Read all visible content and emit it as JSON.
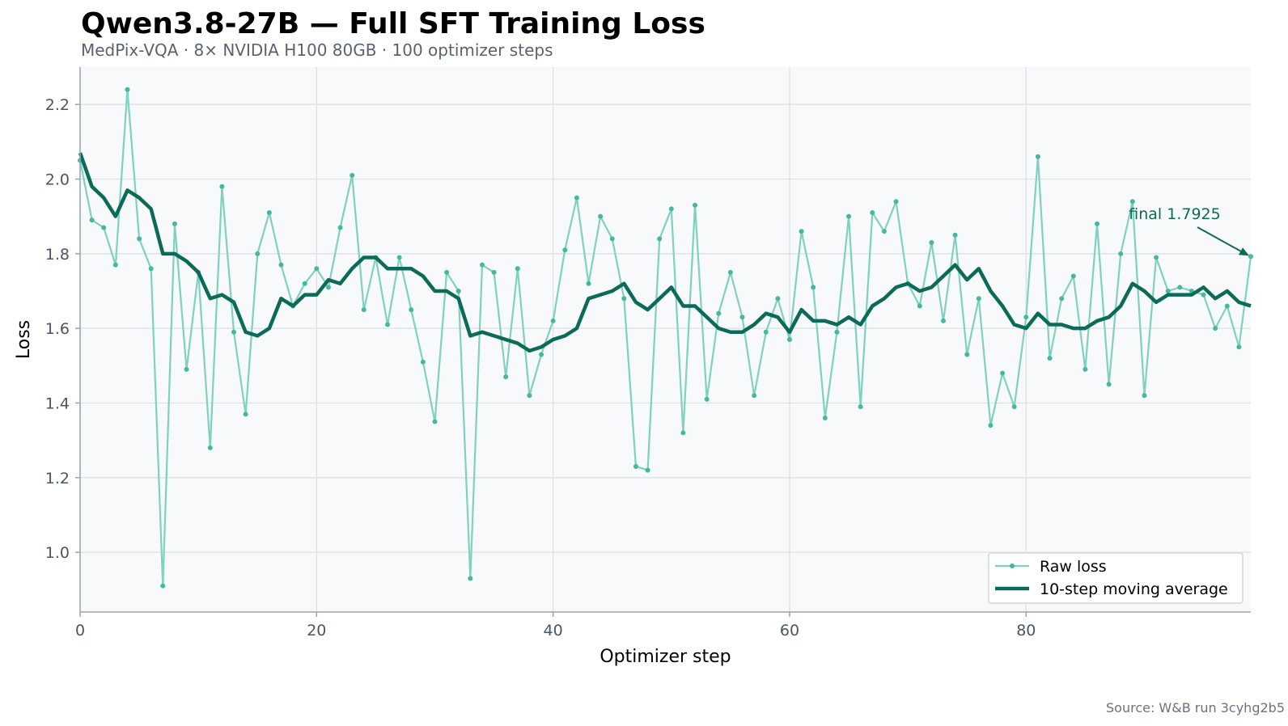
{
  "title": "Qwen3.8-27B — Full SFT Training Loss",
  "subtitle": "MedPix-VQA · 8× NVIDIA H100 80GB · 100 optimizer steps",
  "source": "Source: W&B run 3cyhg2b5",
  "colors": {
    "raw": "#7fd1c0",
    "raw_marker": "#45b89f",
    "moving_average": "#0b6b58",
    "plot_background": "#f8f9fa",
    "grid": "#dde1e5",
    "axis": "#9aa3ad"
  },
  "chart_data": {
    "type": "line",
    "title": "Qwen3.8-27B — Full SFT Training Loss",
    "subtitle": "MedPix-VQA · 8× NVIDIA H100 80GB · 100 optimizer steps",
    "xlabel": "Optimizer step",
    "ylabel": "Loss",
    "xlim": [
      0,
      99
    ],
    "ylim": [
      0.84,
      2.3
    ],
    "xticks": [
      0,
      20,
      40,
      60,
      80
    ],
    "yticks": [
      1.0,
      1.2,
      1.4,
      1.6,
      1.8,
      2.0,
      2.2
    ],
    "xtick_labels": [
      "0",
      "20",
      "40",
      "60",
      "80"
    ],
    "ytick_labels": [
      "1.0",
      "1.2",
      "1.4",
      "1.6",
      "1.8",
      "2.0",
      "2.2"
    ],
    "grid": true,
    "legend": "bottom-right",
    "series": [
      {
        "name": "Raw loss",
        "values": [
          2.05,
          1.89,
          1.87,
          1.77,
          2.24,
          1.84,
          1.76,
          0.91,
          1.88,
          1.49,
          1.75,
          1.28,
          1.98,
          1.59,
          1.37,
          1.8,
          1.91,
          1.77,
          1.66,
          1.72,
          1.76,
          1.71,
          1.87,
          2.01,
          1.65,
          1.79,
          1.61,
          1.79,
          1.65,
          1.51,
          1.35,
          1.75,
          1.7,
          0.93,
          1.77,
          1.75,
          1.47,
          1.76,
          1.42,
          1.53,
          1.62,
          1.81,
          1.95,
          1.72,
          1.9,
          1.84,
          1.68,
          1.23,
          1.22,
          1.84,
          1.92,
          1.32,
          1.93,
          1.41,
          1.64,
          1.75,
          1.63,
          1.42,
          1.59,
          1.68,
          1.57,
          1.86,
          1.71,
          1.36,
          1.59,
          1.9,
          1.39,
          1.91,
          1.86,
          1.94,
          1.72,
          1.66,
          1.83,
          1.62,
          1.85,
          1.53,
          1.68,
          1.34,
          1.48,
          1.39,
          1.63,
          2.06,
          1.52,
          1.68,
          1.74,
          1.49,
          1.88,
          1.45,
          1.8,
          1.94,
          1.42,
          1.79,
          1.7,
          1.71,
          1.7,
          1.69,
          1.6,
          1.66,
          1.55,
          1.7925
        ]
      },
      {
        "name": "10-step moving average",
        "values": [
          2.07,
          1.98,
          1.95,
          1.9,
          1.97,
          1.95,
          1.92,
          1.8,
          1.8,
          1.78,
          1.75,
          1.68,
          1.69,
          1.67,
          1.59,
          1.58,
          1.6,
          1.68,
          1.66,
          1.69,
          1.69,
          1.73,
          1.72,
          1.76,
          1.79,
          1.79,
          1.76,
          1.76,
          1.76,
          1.74,
          1.7,
          1.7,
          1.68,
          1.58,
          1.59,
          1.58,
          1.57,
          1.56,
          1.54,
          1.55,
          1.57,
          1.58,
          1.6,
          1.68,
          1.69,
          1.7,
          1.72,
          1.67,
          1.65,
          1.68,
          1.71,
          1.66,
          1.66,
          1.63,
          1.6,
          1.59,
          1.59,
          1.61,
          1.64,
          1.63,
          1.59,
          1.65,
          1.62,
          1.62,
          1.61,
          1.63,
          1.61,
          1.66,
          1.68,
          1.71,
          1.72,
          1.7,
          1.71,
          1.74,
          1.77,
          1.73,
          1.76,
          1.7,
          1.66,
          1.61,
          1.6,
          1.64,
          1.61,
          1.61,
          1.6,
          1.6,
          1.62,
          1.63,
          1.66,
          1.72,
          1.7,
          1.67,
          1.69,
          1.69,
          1.69,
          1.71,
          1.68,
          1.7,
          1.67,
          1.66
        ]
      }
    ],
    "annotation": {
      "text": "final 1.7925",
      "x": 99,
      "y": 1.7925
    }
  }
}
